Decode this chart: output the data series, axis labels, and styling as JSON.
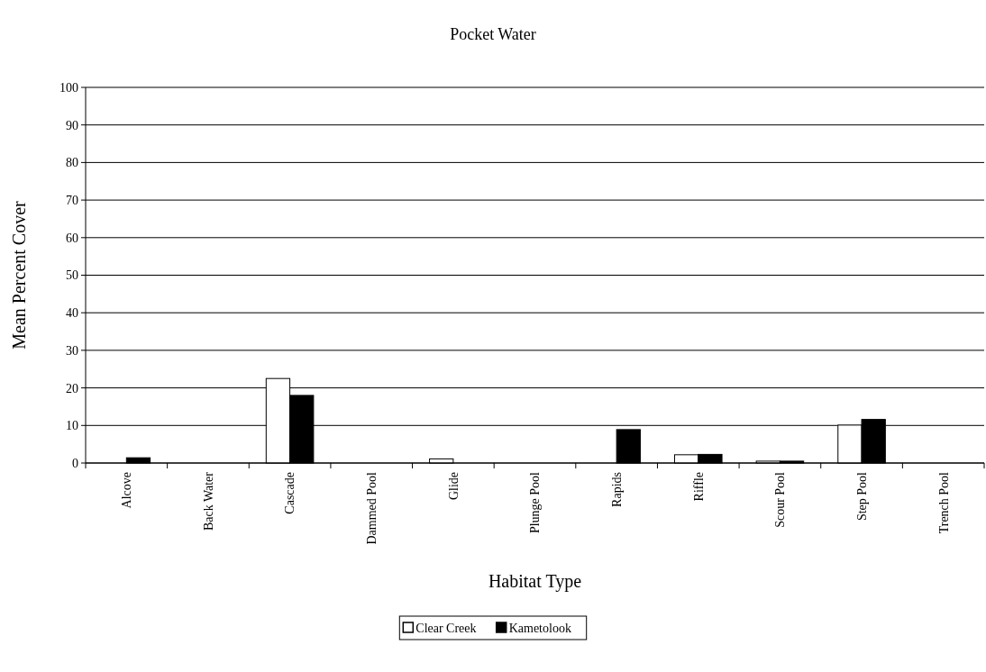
{
  "chart_data": {
    "type": "bar",
    "title": "Pocket Water",
    "xlabel": "Habitat Type",
    "ylabel": "Mean Percent Cover",
    "categories": [
      "Alcove",
      "Back Water",
      "Cascade",
      "Dammed Pool",
      "Glide",
      "Plunge Pool",
      "Rapids",
      "Riffle",
      "Scour Pool",
      "Step Pool",
      "Trench Pool"
    ],
    "series": [
      {
        "name": "Clear Creek",
        "color": "#ffffff",
        "values": [
          0,
          0,
          22.5,
          0,
          1.1,
          0,
          0,
          2.2,
          0.5,
          10.1,
          0
        ]
      },
      {
        "name": "Kametolook",
        "color": "#000000",
        "values": [
          1.4,
          0,
          18.0,
          0,
          0,
          0,
          8.9,
          2.3,
          0.5,
          11.6,
          0
        ]
      }
    ],
    "ylim": [
      0,
      100
    ],
    "yticks": [
      0,
      10,
      20,
      30,
      40,
      50,
      60,
      70,
      80,
      90,
      100
    ],
    "grid": "y",
    "legend": "bottom"
  }
}
